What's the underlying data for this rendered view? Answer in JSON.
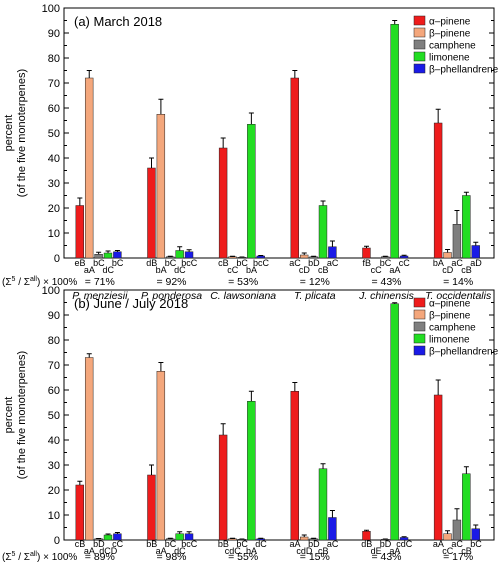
{
  "y_axis_label_line1": "percent",
  "y_axis_label_line2": "(of the five monoterpenes)",
  "ratio_label_1": "(Σ",
  "ratio_label_sup1": "5",
  "ratio_label_2": " / Σ",
  "ratio_label_sup2": "all",
  "ratio_label_3": ") × 100%",
  "series_colors": {
    "α–pinene": "#ee1c1c",
    "β–pinene": "#f4a77c",
    "camphene": "#7f7f7f",
    "limonene": "#22dd22",
    "β–phellandrene": "#1a1ae6"
  },
  "chart_data": [
    {
      "type": "bar",
      "title": "(a) March 2018",
      "ylabel": "percent (of the five monoterpenes)",
      "ylim": [
        0,
        100
      ],
      "yticks": [
        0,
        10,
        20,
        30,
        40,
        50,
        60,
        70,
        80,
        90,
        100
      ],
      "grid": false,
      "legend_position": "top-right",
      "categories": [
        "P. menziesii",
        "P. ponderosa",
        "C. lawsoniana",
        "T. plicata",
        "J. chinensis",
        "T. occidentalis"
      ],
      "series": [
        {
          "name": "α–pinene",
          "values": [
            21,
            36,
            44,
            72,
            4,
            54
          ],
          "errors": [
            3,
            4,
            4,
            3,
            0.7,
            5.5
          ]
        },
        {
          "name": "β–pinene",
          "values": [
            72,
            57.5,
            0.5,
            1.2,
            0,
            2.2
          ],
          "errors": [
            3,
            6,
            0.2,
            0.8,
            0,
            1.2
          ]
        },
        {
          "name": "camphene",
          "values": [
            1.5,
            0.5,
            0.3,
            0.5,
            0.5,
            13.5
          ],
          "errors": [
            0.8,
            0.2,
            0.1,
            0.2,
            0.2,
            5.5
          ]
        },
        {
          "name": "limonene",
          "values": [
            2,
            3,
            53.5,
            21,
            93.5,
            25
          ],
          "errors": [
            0.8,
            1.5,
            4.5,
            1.8,
            1.5,
            1.3
          ]
        },
        {
          "name": "β–phellandrene",
          "values": [
            2.5,
            2.5,
            0.8,
            4.5,
            0.8,
            5
          ],
          "errors": [
            0.5,
            0.8,
            0.2,
            2.3,
            0.3,
            1.3
          ]
        }
      ],
      "significance_labels": [
        [
          "eB",
          "aA",
          "bC",
          "dC",
          "bC"
        ],
        [
          "dB",
          "bA",
          "bC",
          "dC",
          "bcC"
        ],
        [
          "cB",
          "cC",
          "bC",
          "bA",
          "bcC"
        ],
        [
          "aC",
          "cD",
          "bD",
          "cB",
          "aC"
        ],
        [
          "fB",
          "cC",
          "bC",
          "aA",
          "cC"
        ],
        [
          "bA",
          "cD",
          "aC",
          "cB",
          "aD"
        ]
      ],
      "percentages": [
        "= 71%",
        "= 92%",
        "= 53%",
        "= 12%",
        "= 43%",
        "= 14%"
      ]
    },
    {
      "type": "bar",
      "title": "(b) June / July 2018",
      "ylabel": "percent (of the five monoterpenes)",
      "ylim": [
        0,
        100
      ],
      "yticks": [
        0,
        10,
        20,
        30,
        40,
        50,
        60,
        70,
        80,
        90,
        100
      ],
      "grid": false,
      "legend_position": "top-right",
      "categories": [
        "P. menziesii",
        "P. ponderosa",
        "C. lawsoniana",
        "T. plicata",
        "J. chinensis",
        "T. occidentalis"
      ],
      "series": [
        {
          "name": "α–pinene",
          "values": [
            22,
            26,
            42,
            59.5,
            3.5,
            58
          ],
          "errors": [
            1.5,
            4,
            4.5,
            3.5,
            0.4,
            6
          ]
        },
        {
          "name": "β–pinene",
          "values": [
            73,
            67.5,
            0.5,
            1.2,
            0,
            2.5
          ],
          "errors": [
            1.5,
            3.5,
            0.2,
            0.8,
            0,
            1.2
          ]
        },
        {
          "name": "camphene",
          "values": [
            0.5,
            0.5,
            0.3,
            0.5,
            0.3,
            8
          ],
          "errors": [
            0.1,
            0.2,
            0.1,
            0.2,
            0.1,
            4.5
          ]
        },
        {
          "name": "limonene",
          "values": [
            2,
            2.5,
            55.5,
            28.5,
            94.5,
            26.5
          ],
          "errors": [
            0.4,
            0.8,
            4,
            2,
            0.4,
            2.8
          ]
        },
        {
          "name": "β–phellandrene",
          "values": [
            2.5,
            2.5,
            0.5,
            9,
            1,
            4.5
          ],
          "errors": [
            0.5,
            0.8,
            0.2,
            2.8,
            0.3,
            1.5
          ]
        }
      ],
      "significance_labels": [
        [
          "cB",
          "aA",
          "bD",
          "dCD",
          "cC"
        ],
        [
          "bB",
          "aA",
          "bC",
          "dC",
          "bcC"
        ],
        [
          "bB",
          "cdC",
          "bC",
          "bA",
          "dC"
        ],
        [
          "aA",
          "cdD",
          "bD",
          "cB",
          "aC"
        ],
        [
          "dB",
          "dE",
          "bD",
          "aA",
          "cdC"
        ],
        [
          "aA",
          "cC",
          "aC",
          "cB",
          "bC"
        ]
      ],
      "percentages": [
        "= 89%",
        "= 98%",
        "= 55%",
        "= 15%",
        "= 43%",
        "= 17%"
      ]
    }
  ]
}
